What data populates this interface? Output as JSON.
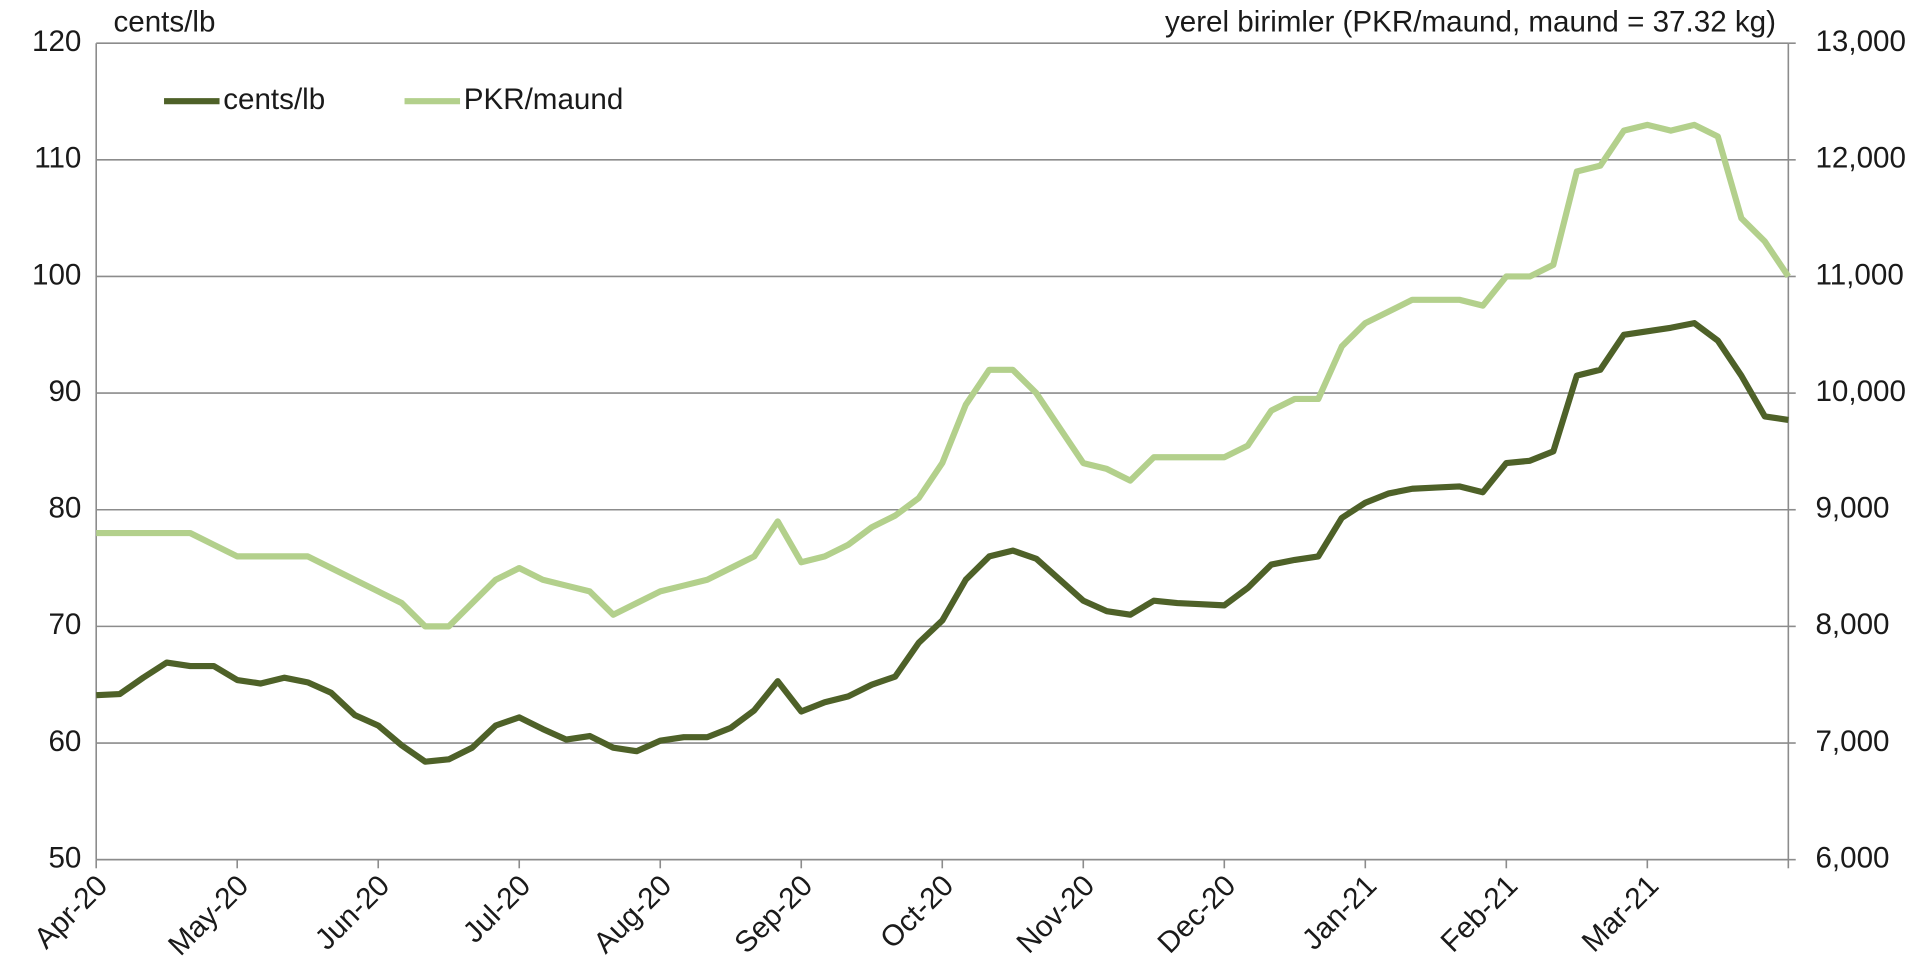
{
  "chart_data": {
    "type": "line",
    "y_label": "cents/lb",
    "y2_label": "yerel birimler (PKR/maund, maund = 37.32 kg)",
    "categories": [
      "Apr-20",
      null,
      null,
      null,
      null,
      null,
      "May-20",
      null,
      null,
      null,
      null,
      null,
      "Jun-20",
      null,
      null,
      null,
      null,
      null,
      "Jul-20",
      null,
      null,
      null,
      null,
      null,
      "Aug-20",
      null,
      null,
      null,
      null,
      null,
      "Sep-20",
      null,
      null,
      null,
      null,
      null,
      "Oct-20",
      null,
      null,
      null,
      null,
      null,
      "Nov-20",
      null,
      null,
      null,
      null,
      null,
      "Dec-20",
      null,
      null,
      null,
      null,
      null,
      "Jan-21",
      null,
      null,
      null,
      null,
      null,
      "Feb-21",
      null,
      null,
      null,
      null,
      null,
      "Mar-21",
      null,
      null,
      null,
      null,
      null,
      null
    ],
    "series": [
      {
        "name": "cents/lb",
        "color": "#4e6128",
        "values": [
          64.1,
          64.2,
          65.6,
          66.9,
          66.6,
          66.6,
          65.4,
          65.1,
          65.6,
          65.2,
          64.3,
          62.4,
          61.5,
          59.8,
          58.4,
          58.6,
          59.6,
          61.5,
          62.2,
          61.2,
          60.3,
          60.6,
          59.6,
          59.3,
          60.2,
          60.5,
          60.5,
          61.3,
          62.8,
          65.3,
          62.7,
          63.5,
          64.0,
          65.0,
          65.7,
          68.6,
          70.5,
          74.0,
          76.0,
          76.5,
          75.8,
          74.0,
          72.2,
          71.3,
          71.0,
          72.2,
          72.0,
          71.9,
          71.8,
          73.3,
          75.3,
          75.7,
          76.0,
          79.3,
          80.6,
          81.4,
          81.8,
          81.9,
          82.0,
          81.5,
          84.0,
          84.2,
          85.0,
          91.5,
          92.0,
          95.0,
          95.3,
          95.6,
          96.0,
          94.5,
          91.5,
          88.0,
          87.7
        ]
      },
      {
        "name": "PKR/maund",
        "color": "#b3d08c",
        "axis": "y2",
        "values": [
          8800,
          8800,
          8800,
          8800,
          8800,
          8700,
          8600,
          8600,
          8600,
          8600,
          8500,
          8400,
          8300,
          8200,
          8000,
          8000,
          8200,
          8400,
          8500,
          8400,
          8350,
          8300,
          8100,
          8200,
          8300,
          8350,
          8400,
          8500,
          8600,
          8900,
          8550,
          8600,
          8700,
          8850,
          8950,
          9100,
          9400,
          9900,
          10200,
          10200,
          10000,
          9700,
          9400,
          9350,
          9250,
          9450,
          9450,
          9450,
          9450,
          9550,
          9850,
          9950,
          9950,
          10400,
          10600,
          10700,
          10800,
          10800,
          10800,
          10750,
          11000,
          11000,
          11100,
          11900,
          11950,
          12250,
          12300,
          12250,
          12300,
          12200,
          11500,
          11300,
          11000
        ]
      }
    ],
    "ylim": [
      50,
      120
    ],
    "yticks": [
      50,
      60,
      70,
      80,
      90,
      100,
      110,
      120
    ],
    "y2lim": [
      6000,
      13000
    ],
    "y2ticks": [
      {
        "value": 6000,
        "label": "6,000"
      },
      {
        "value": 7000,
        "label": "7,000"
      },
      {
        "value": 8000,
        "label": "8,000"
      },
      {
        "value": 9000,
        "label": "9,000"
      },
      {
        "value": 10000,
        "label": "10,000"
      },
      {
        "value": 11000,
        "label": "11,000"
      },
      {
        "value": 12000,
        "label": "12,000"
      },
      {
        "value": 13000,
        "label": "13,000"
      }
    ],
    "grid": true,
    "legend": "top-left"
  }
}
